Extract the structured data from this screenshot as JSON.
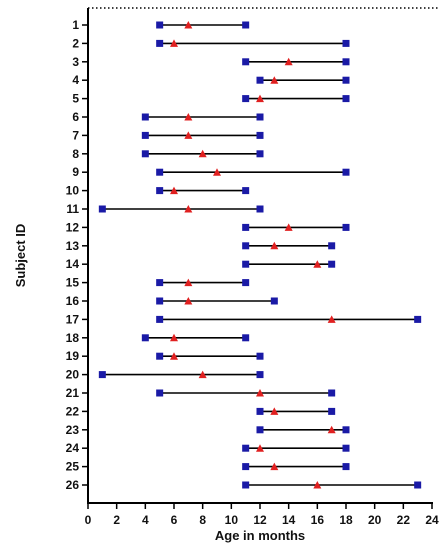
{
  "chart_data": {
    "type": "scatter",
    "xlabel": "Age in months",
    "ylabel": "Subject ID",
    "xlim": [
      0,
      24
    ],
    "x_ticks": [
      0,
      2,
      4,
      6,
      8,
      10,
      12,
      14,
      16,
      18,
      20,
      22,
      24
    ],
    "grid": false,
    "marker_colors": {
      "start_end": "#1a1aa6",
      "event": "#e02020",
      "line": "#000000"
    },
    "marker_shapes": {
      "start_end": "square",
      "event": "triangle"
    },
    "subjects": [
      {
        "id": "1",
        "start": 5,
        "end": 11,
        "event": 7
      },
      {
        "id": "2",
        "start": 5,
        "end": 18,
        "event": 6
      },
      {
        "id": "3",
        "start": 11,
        "end": 18,
        "event": 14
      },
      {
        "id": "4",
        "start": 12,
        "end": 18,
        "event": 13
      },
      {
        "id": "5",
        "start": 11,
        "end": 18,
        "event": 12
      },
      {
        "id": "6",
        "start": 4,
        "end": 12,
        "event": 7
      },
      {
        "id": "7",
        "start": 4,
        "end": 12,
        "event": 7
      },
      {
        "id": "8",
        "start": 4,
        "end": 12,
        "event": 8
      },
      {
        "id": "9",
        "start": 5,
        "end": 18,
        "event": 9
      },
      {
        "id": "10",
        "start": 5,
        "end": 11,
        "event": 6
      },
      {
        "id": "11",
        "start": 1,
        "end": 12,
        "event": 7
      },
      {
        "id": "12",
        "start": 11,
        "end": 18,
        "event": 14
      },
      {
        "id": "13",
        "start": 11,
        "end": 17,
        "event": 13
      },
      {
        "id": "14",
        "start": 11,
        "end": 17,
        "event": 16
      },
      {
        "id": "15",
        "start": 5,
        "end": 11,
        "event": 7
      },
      {
        "id": "16",
        "start": 5,
        "end": 13,
        "event": 7
      },
      {
        "id": "17",
        "start": 5,
        "end": 23,
        "event": 17
      },
      {
        "id": "18",
        "start": 4,
        "end": 11,
        "event": 6
      },
      {
        "id": "19",
        "start": 5,
        "end": 12,
        "event": 6
      },
      {
        "id": "20",
        "start": 1,
        "end": 12,
        "event": 8
      },
      {
        "id": "21",
        "start": 5,
        "end": 17,
        "event": 12
      },
      {
        "id": "22",
        "start": 12,
        "end": 17,
        "event": 13
      },
      {
        "id": "23",
        "start": 12,
        "end": 18,
        "event": 17
      },
      {
        "id": "24",
        "start": 11,
        "end": 18,
        "event": 12
      },
      {
        "id": "25",
        "start": 11,
        "end": 18,
        "event": 13
      },
      {
        "id": "26",
        "start": 11,
        "end": 23,
        "event": 16
      }
    ]
  }
}
